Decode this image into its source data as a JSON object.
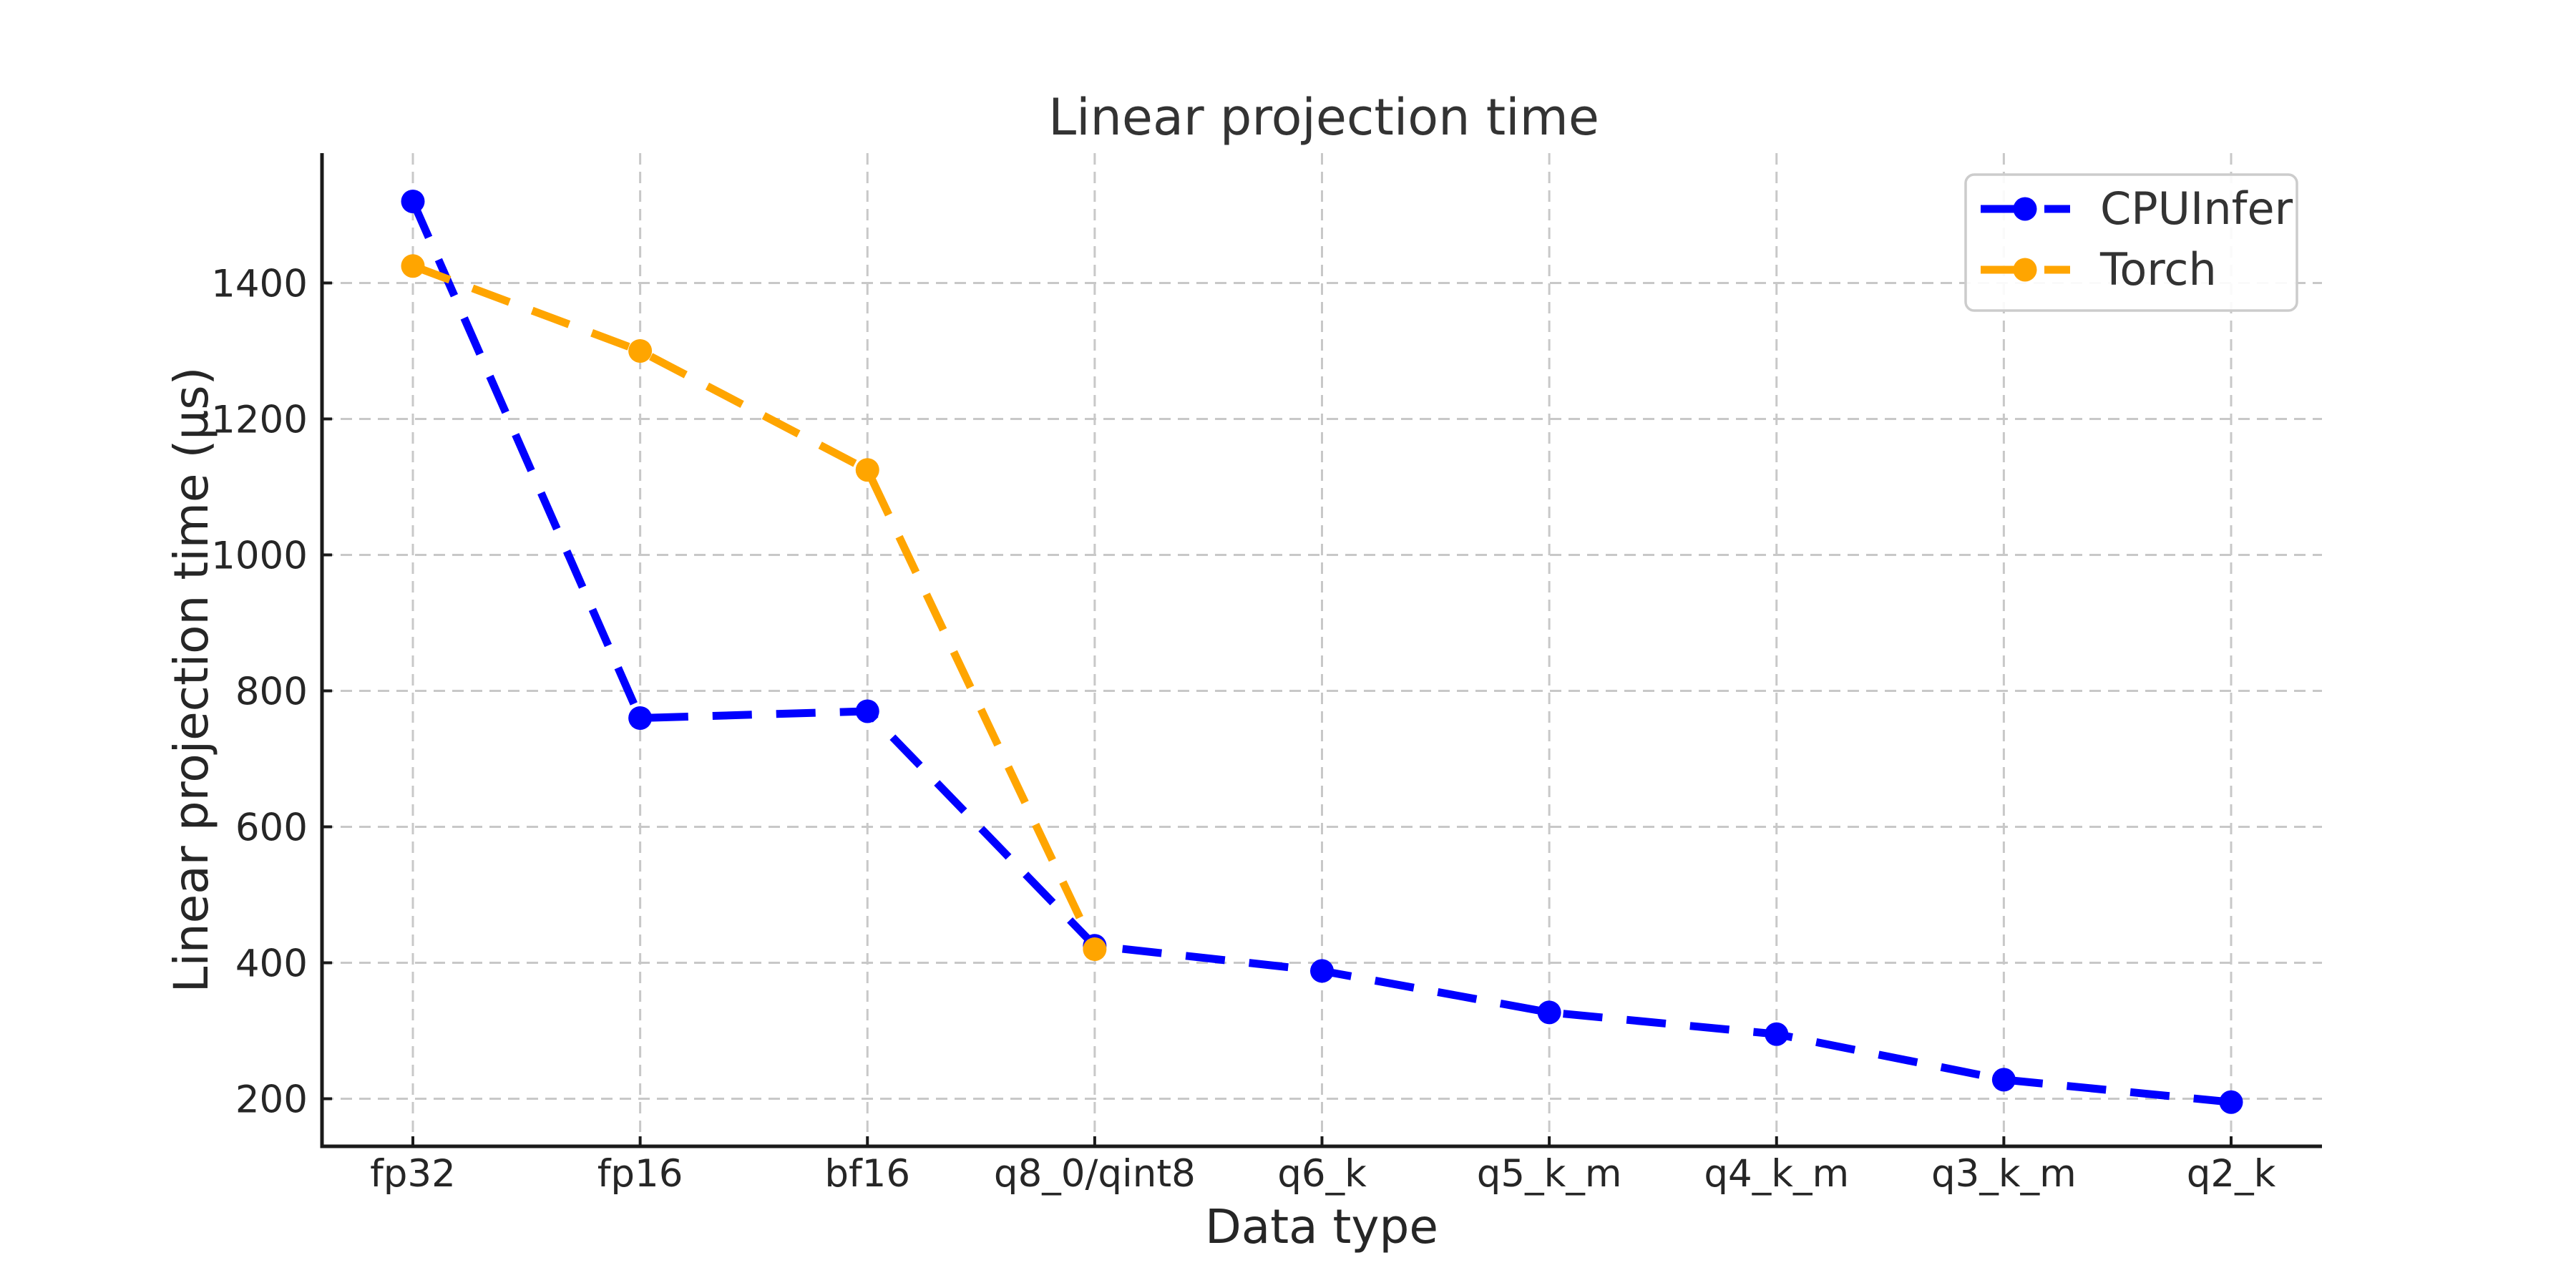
{
  "chart_data": {
    "type": "line",
    "title": "Linear projection time",
    "xlabel": "Data type",
    "ylabel": "Linear projection time (µs)",
    "categories": [
      "fp32",
      "fp16",
      "bf16",
      "q8_0/qint8",
      "q6_k",
      "q5_k_m",
      "q4_k_m",
      "q3_k_m",
      "q2_k"
    ],
    "series": [
      {
        "name": "CPUInfer",
        "color": "#0000ff",
        "values": [
          1520,
          760,
          770,
          425,
          388,
          327,
          295,
          228,
          195
        ]
      },
      {
        "name": "Torch",
        "color": "#ffa500",
        "values": [
          1425,
          1300,
          1125,
          420,
          null,
          null,
          null,
          null,
          null
        ]
      }
    ],
    "yticks": [
      200,
      400,
      600,
      800,
      1000,
      1200,
      1400
    ],
    "ylim": [
      130,
      1591
    ],
    "grid": "dashed-both-axes",
    "grid_color": "#c8c8c8",
    "line_style": "dashed",
    "marker": "circle",
    "legend_position": "upper right",
    "text_color": "#262626",
    "spine_color": "#1a1a1a",
    "legend_border_color": "#cccccc",
    "background_color": "#ffffff"
  }
}
